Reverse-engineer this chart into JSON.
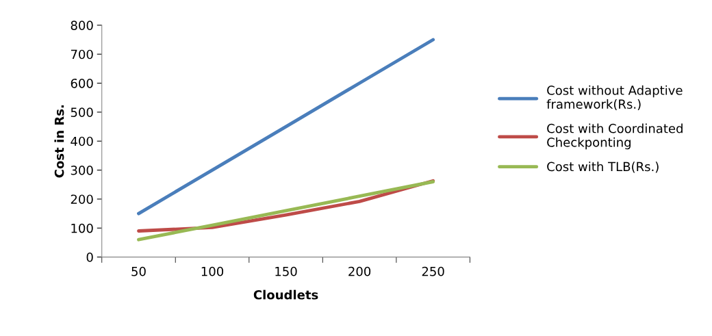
{
  "chart_data": {
    "type": "line",
    "xlabel": "Cloudlets",
    "ylabel": "Cost in Rs.",
    "categories": [
      "50",
      "100",
      "150",
      "200",
      "250"
    ],
    "series": [
      {
        "name": "Cost without Adaptive\nframework(Rs.)",
        "color": "#4a7ebb",
        "values": [
          150,
          300,
          450,
          600,
          750
        ]
      },
      {
        "name": "Cost with Coordinated\nCheckponting",
        "color": "#be4b48",
        "values": [
          90,
          102,
          145,
          192,
          263
        ]
      },
      {
        "name": "Cost with TLB(Rs.)",
        "color": "#98b954",
        "values": [
          60,
          110,
          160,
          210,
          260
        ]
      }
    ],
    "ylim": [
      0,
      800
    ],
    "yticks": [
      0,
      100,
      200,
      300,
      400,
      500,
      600,
      700,
      800
    ],
    "grid": false,
    "legend": "right",
    "marker": "none",
    "line_style": "solid"
  }
}
